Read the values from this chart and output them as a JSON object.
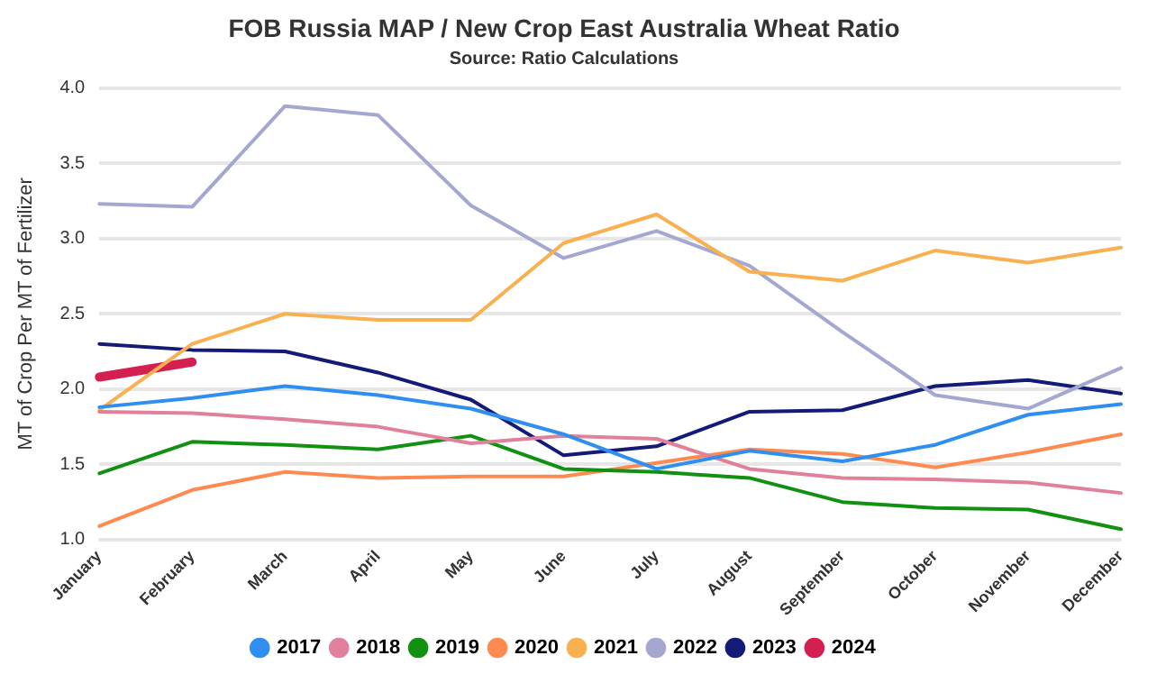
{
  "chart_data": {
    "type": "line",
    "title": "FOB Russia MAP / New Crop East Australia Wheat Ratio",
    "subtitle": "Source: Ratio Calculations",
    "ylabel": "MT of Crop Per MT of Fertilizer",
    "categories": [
      "January",
      "February",
      "March",
      "April",
      "May",
      "June",
      "July",
      "August",
      "September",
      "October",
      "November",
      "December"
    ],
    "series": [
      {
        "name": "2017",
        "color": "#2f8ff0",
        "values": [
          1.88,
          1.94,
          2.02,
          1.96,
          1.87,
          1.7,
          1.47,
          1.59,
          1.52,
          1.63,
          1.83,
          1.9
        ]
      },
      {
        "name": "2018",
        "color": "#e0809a",
        "values": [
          1.85,
          1.84,
          1.8,
          1.75,
          1.64,
          1.69,
          1.67,
          1.47,
          1.41,
          1.4,
          1.38,
          1.31
        ]
      },
      {
        "name": "2019",
        "color": "#129012",
        "values": [
          1.44,
          1.65,
          1.63,
          1.6,
          1.69,
          1.47,
          1.45,
          1.41,
          1.25,
          1.21,
          1.2,
          1.07
        ]
      },
      {
        "name": "2020",
        "color": "#ff8a50",
        "values": [
          1.09,
          1.33,
          1.45,
          1.41,
          1.42,
          1.42,
          1.51,
          1.6,
          1.57,
          1.48,
          1.58,
          1.7
        ]
      },
      {
        "name": "2021",
        "color": "#f8b050",
        "values": [
          1.86,
          2.3,
          2.5,
          2.46,
          2.46,
          2.97,
          3.16,
          2.78,
          2.72,
          2.92,
          2.84,
          2.94
        ]
      },
      {
        "name": "2022",
        "color": "#a4a8d0",
        "values": [
          3.23,
          3.21,
          3.88,
          3.82,
          3.22,
          2.87,
          3.05,
          2.82,
          2.38,
          1.96,
          1.87,
          2.14
        ]
      },
      {
        "name": "2023",
        "color": "#141a78",
        "values": [
          2.3,
          2.26,
          2.25,
          2.11,
          1.93,
          1.56,
          1.62,
          1.85,
          1.86,
          2.02,
          2.06,
          1.97
        ]
      },
      {
        "name": "2024",
        "color": "#d42050",
        "values": [
          2.08,
          2.18,
          null,
          null,
          null,
          null,
          null,
          null,
          null,
          null,
          null,
          null
        ]
      }
    ],
    "ylim": [
      1.0,
      4.0
    ],
    "yticks": [
      {
        "value": 1,
        "label": "1.0"
      },
      {
        "value": 1.5,
        "label": "1.5"
      },
      {
        "value": 2,
        "label": "2.0"
      },
      {
        "value": 2.5,
        "label": "2.5"
      },
      {
        "value": 3,
        "label": "3.0"
      },
      {
        "value": 3.5,
        "label": "3.5"
      },
      {
        "value": 4,
        "label": "4.0"
      }
    ],
    "grid": "y",
    "legend": "bottom",
    "marker": "none",
    "line_style": "solid"
  }
}
